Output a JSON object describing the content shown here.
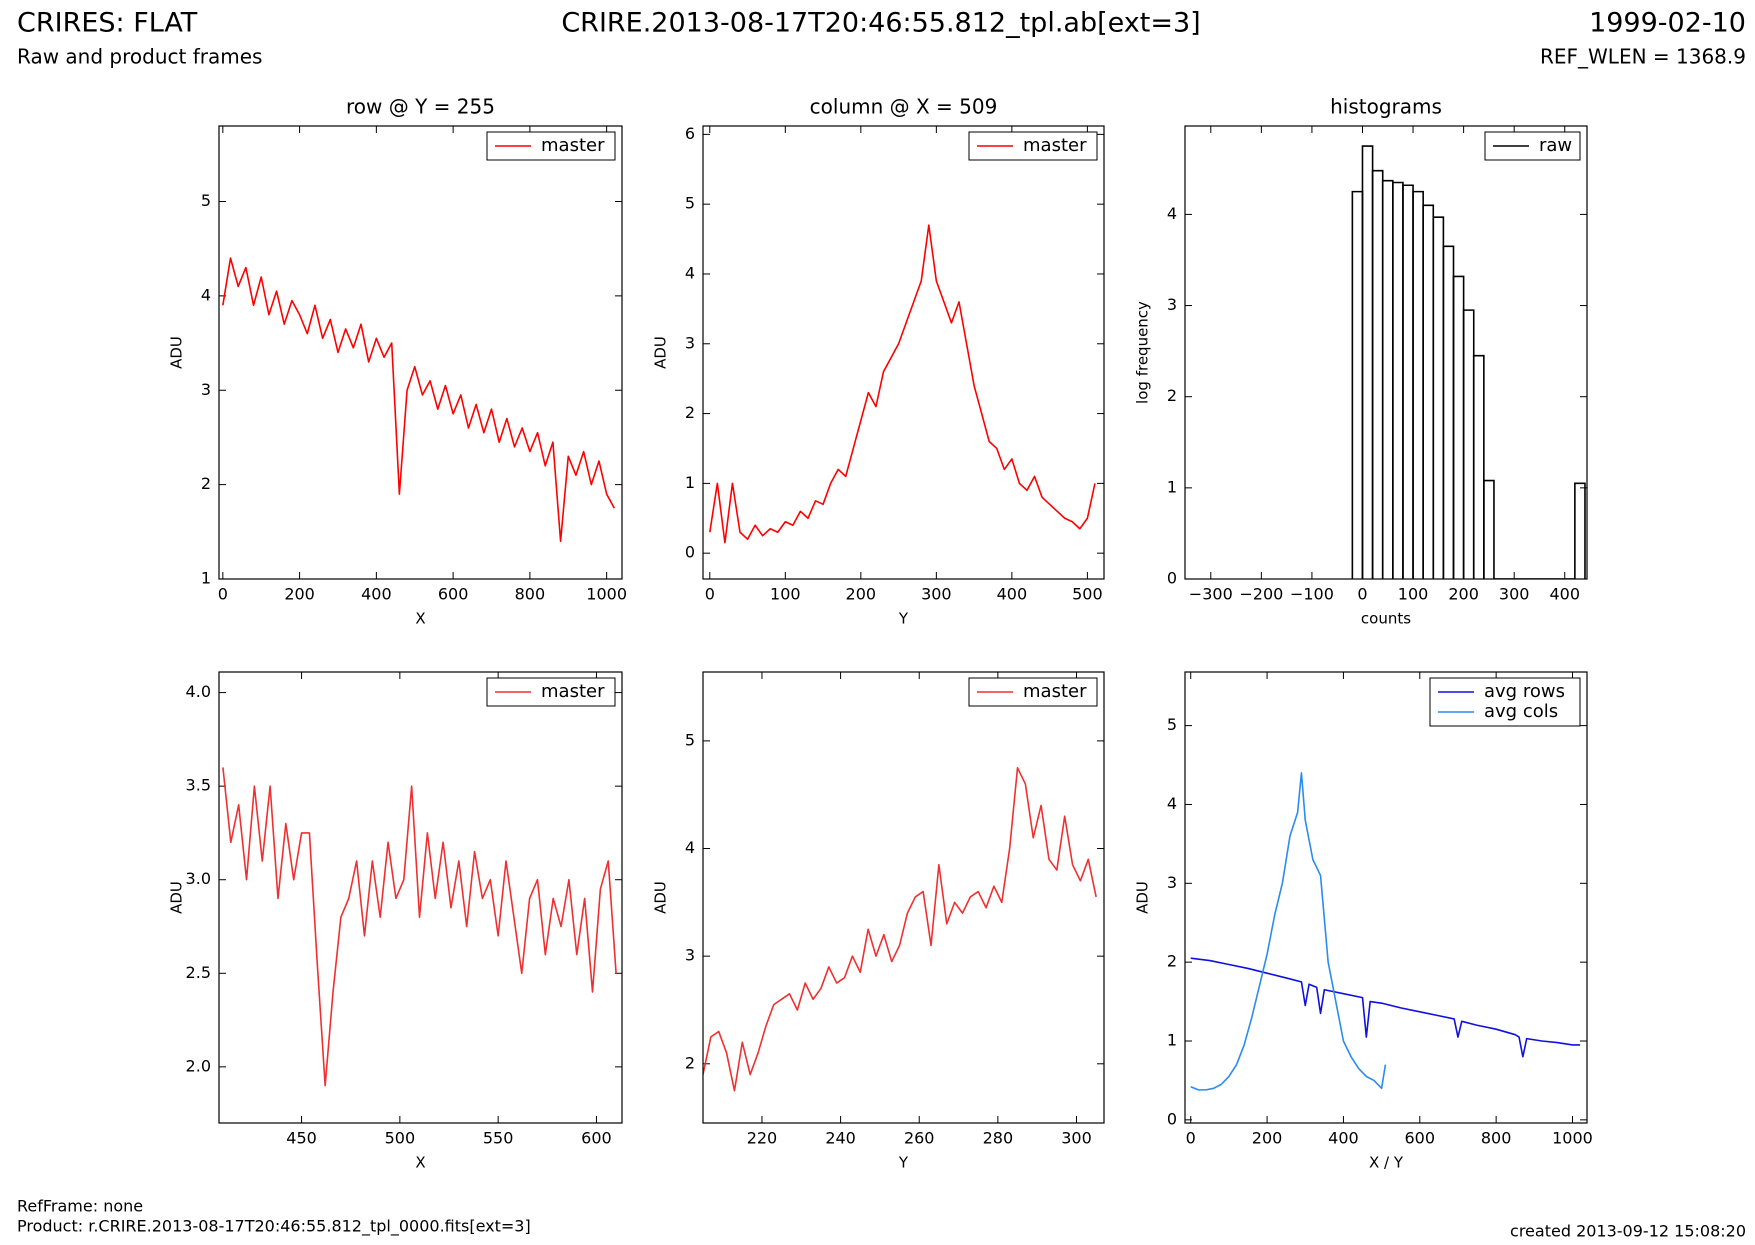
{
  "header": {
    "title": "CRIRES: FLAT",
    "subtitle": "Raw and product frames",
    "file": "CRIRE.2013-08-17T20:46:55.812_tpl.ab[ext=3]",
    "date": "1999-02-10",
    "ref_wlen": "REF_WLEN = 1368.9"
  },
  "footer": {
    "ref_frame": "RefFrame: none",
    "product": "Product: r.CRIRE.2013-08-17T20:46:55.812_tpl_0000.fits[ext=3]",
    "created": "created 2013-09-12 15:08:20"
  },
  "chart_data": [
    {
      "type": "line",
      "title": "row @ Y = 255",
      "x_label": "X",
      "y_label": "ADU",
      "legend": "upper right",
      "xlim": [
        -10,
        1040
      ],
      "ylim": [
        1,
        5.8
      ],
      "xticks": [
        0,
        200,
        400,
        600,
        800,
        1000
      ],
      "yticks": [
        1,
        2,
        3,
        4,
        5
      ],
      "series": [
        {
          "name": "master",
          "color": "#ff0000",
          "x": [
            0,
            20,
            40,
            60,
            80,
            100,
            120,
            140,
            160,
            180,
            200,
            220,
            240,
            260,
            280,
            300,
            320,
            340,
            360,
            380,
            400,
            420,
            440,
            460,
            480,
            500,
            520,
            540,
            560,
            580,
            600,
            620,
            640,
            660,
            680,
            700,
            720,
            740,
            760,
            780,
            800,
            820,
            840,
            860,
            880,
            900,
            920,
            940,
            960,
            980,
            1000,
            1020
          ],
          "values": [
            3.9,
            4.4,
            4.1,
            4.3,
            3.9,
            4.2,
            3.8,
            4.05,
            3.7,
            3.95,
            3.8,
            3.6,
            3.9,
            3.55,
            3.75,
            3.4,
            3.65,
            3.45,
            3.7,
            3.3,
            3.55,
            3.35,
            3.5,
            1.9,
            3.0,
            3.25,
            2.95,
            3.1,
            2.8,
            3.05,
            2.75,
            2.95,
            2.6,
            2.85,
            2.55,
            2.8,
            2.45,
            2.7,
            2.4,
            2.6,
            2.35,
            2.55,
            2.2,
            2.45,
            1.4,
            2.3,
            2.1,
            2.35,
            2.0,
            2.25,
            1.9,
            1.75
          ]
        }
      ]
    },
    {
      "type": "line",
      "title": "column @ X = 509",
      "x_label": "Y",
      "y_label": "ADU",
      "legend": "upper right",
      "xlim": [
        -9,
        522
      ],
      "ylim": [
        -0.37,
        6.12
      ],
      "xticks": [
        0,
        100,
        200,
        300,
        400,
        500
      ],
      "yticks": [
        0,
        1,
        2,
        3,
        4,
        5,
        6
      ],
      "series": [
        {
          "name": "master",
          "color": "#ff0000",
          "x": [
            0,
            10,
            20,
            30,
            40,
            50,
            60,
            70,
            80,
            90,
            100,
            110,
            120,
            130,
            140,
            150,
            160,
            170,
            180,
            190,
            200,
            210,
            220,
            230,
            240,
            250,
            260,
            270,
            280,
            290,
            300,
            310,
            320,
            330,
            340,
            350,
            360,
            370,
            380,
            390,
            400,
            410,
            420,
            430,
            440,
            450,
            460,
            470,
            480,
            490,
            500,
            510
          ],
          "values": [
            0.3,
            1.0,
            0.15,
            1.0,
            0.3,
            0.2,
            0.4,
            0.25,
            0.35,
            0.3,
            0.45,
            0.4,
            0.6,
            0.5,
            0.75,
            0.7,
            1.0,
            1.2,
            1.1,
            1.5,
            1.9,
            2.3,
            2.1,
            2.6,
            2.8,
            3.0,
            3.3,
            3.6,
            3.9,
            4.7,
            3.9,
            3.6,
            3.3,
            3.6,
            3.0,
            2.4,
            2.0,
            1.6,
            1.5,
            1.2,
            1.35,
            1.0,
            0.9,
            1.1,
            0.8,
            0.7,
            0.6,
            0.5,
            0.45,
            0.35,
            0.5,
            1.0
          ]
        }
      ]
    },
    {
      "type": "histogram",
      "title": "histograms",
      "x_label": "counts",
      "y_label": "log frequency",
      "legend": "upper right",
      "xlim": [
        -351,
        444
      ],
      "ylim": [
        0,
        4.97
      ],
      "xticks": [
        {
          "value": -300,
          "label": "−300"
        },
        {
          "value": -200,
          "label": "−200"
        },
        {
          "value": -100,
          "label": "−100"
        },
        0,
        100,
        200,
        300,
        400
      ],
      "yticks": [
        0,
        1,
        2,
        3,
        4
      ],
      "bins": [
        -20,
        0,
        20,
        40,
        60,
        80,
        100,
        120,
        140,
        160,
        180,
        200,
        220,
        240,
        260,
        280,
        300,
        320,
        340,
        360,
        380,
        400,
        420,
        440
      ],
      "series": [
        {
          "name": "raw",
          "color": "#000000",
          "values": [
            4.25,
            4.75,
            4.48,
            4.37,
            4.35,
            4.32,
            4.25,
            4.1,
            3.97,
            3.65,
            3.32,
            2.95,
            2.45,
            1.08,
            0,
            0,
            0,
            0,
            0,
            0,
            0,
            0,
            1.05
          ]
        }
      ]
    },
    {
      "type": "line",
      "x_label": "X",
      "y_label": "ADU",
      "legend": "upper right",
      "xlim": [
        408,
        613
      ],
      "ylim": [
        1.7,
        4.11
      ],
      "xticks": [
        450,
        500,
        550,
        600
      ],
      "yticks": [
        {
          "value": 2,
          "label": "2.0"
        },
        {
          "value": 2.5,
          "label": "2.5"
        },
        {
          "value": 3,
          "label": "3.0"
        },
        {
          "value": 3.5,
          "label": "3.5"
        },
        {
          "value": 4,
          "label": "4.0"
        }
      ],
      "series": [
        {
          "name": "master",
          "color": "#f03030",
          "x": [
            410,
            414,
            418,
            422,
            426,
            430,
            434,
            438,
            442,
            446,
            450,
            454,
            458,
            462,
            466,
            470,
            474,
            478,
            482,
            486,
            490,
            494,
            498,
            502,
            506,
            510,
            514,
            518,
            522,
            526,
            530,
            534,
            538,
            542,
            546,
            550,
            554,
            558,
            562,
            566,
            570,
            574,
            578,
            582,
            586,
            590,
            594,
            598,
            602,
            606,
            610
          ],
          "values": [
            3.6,
            3.2,
            3.4,
            3.0,
            3.5,
            3.1,
            3.5,
            2.9,
            3.3,
            3.0,
            3.25,
            3.25,
            2.55,
            1.9,
            2.4,
            2.8,
            2.9,
            3.1,
            2.7,
            3.1,
            2.8,
            3.2,
            2.9,
            3.0,
            3.5,
            2.8,
            3.25,
            2.9,
            3.2,
            2.85,
            3.1,
            2.75,
            3.15,
            2.9,
            3.0,
            2.7,
            3.1,
            2.8,
            2.5,
            2.9,
            3.0,
            2.6,
            2.9,
            2.75,
            3.0,
            2.6,
            2.9,
            2.4,
            2.95,
            3.1,
            2.5
          ]
        }
      ]
    },
    {
      "type": "line",
      "x_label": "Y",
      "y_label": "ADU",
      "legend": "upper right",
      "xlim": [
        205,
        307
      ],
      "ylim": [
        1.45,
        5.64
      ],
      "xticks": [
        220,
        240,
        260,
        280,
        300
      ],
      "yticks": [
        2,
        3,
        4,
        5
      ],
      "series": [
        {
          "name": "master",
          "color": "#f03030",
          "x": [
            205,
            207,
            209,
            211,
            213,
            215,
            217,
            219,
            221,
            223,
            225,
            227,
            229,
            231,
            233,
            235,
            237,
            239,
            241,
            243,
            245,
            247,
            249,
            251,
            253,
            255,
            257,
            259,
            261,
            263,
            265,
            267,
            269,
            271,
            273,
            275,
            277,
            279,
            281,
            283,
            285,
            287,
            289,
            291,
            293,
            295,
            297,
            299,
            301,
            303,
            305
          ],
          "values": [
            1.9,
            2.25,
            2.3,
            2.1,
            1.75,
            2.2,
            1.9,
            2.1,
            2.35,
            2.55,
            2.6,
            2.65,
            2.5,
            2.75,
            2.6,
            2.7,
            2.9,
            2.75,
            2.8,
            3.0,
            2.85,
            3.25,
            3.0,
            3.2,
            2.95,
            3.1,
            3.4,
            3.55,
            3.6,
            3.1,
            3.85,
            3.3,
            3.5,
            3.4,
            3.55,
            3.6,
            3.45,
            3.65,
            3.5,
            4.0,
            4.75,
            4.6,
            4.1,
            4.4,
            3.9,
            3.8,
            4.3,
            3.85,
            3.7,
            3.9,
            3.55
          ]
        }
      ]
    },
    {
      "type": "line",
      "x_label": "X / Y",
      "y_label": "ADU",
      "legend": "upper right",
      "xlim": [
        -15,
        1038
      ],
      "ylim": [
        -0.04,
        5.68
      ],
      "xticks": [
        0,
        200,
        400,
        600,
        800,
        1000
      ],
      "yticks": [
        0,
        1,
        2,
        3,
        4,
        5
      ],
      "series": [
        {
          "name": "avg rows",
          "color": "#1010e0",
          "x": [
            0,
            50,
            100,
            150,
            200,
            250,
            290,
            300,
            310,
            330,
            340,
            350,
            400,
            450,
            460,
            470,
            500,
            550,
            600,
            650,
            690,
            700,
            710,
            750,
            800,
            850,
            860,
            870,
            880,
            920,
            960,
            1000,
            1020
          ],
          "values": [
            2.05,
            2.02,
            1.97,
            1.92,
            1.86,
            1.8,
            1.75,
            1.45,
            1.72,
            1.68,
            1.35,
            1.65,
            1.6,
            1.55,
            1.05,
            1.5,
            1.48,
            1.42,
            1.37,
            1.32,
            1.28,
            1.05,
            1.25,
            1.2,
            1.15,
            1.08,
            1.05,
            0.8,
            1.03,
            1.0,
            0.98,
            0.95,
            0.95
          ]
        },
        {
          "name": "avg cols",
          "color": "#2a8cf0",
          "x": [
            0,
            20,
            40,
            60,
            80,
            100,
            120,
            140,
            160,
            180,
            200,
            220,
            240,
            260,
            280,
            290,
            300,
            320,
            340,
            360,
            380,
            400,
            420,
            440,
            460,
            480,
            500,
            510
          ],
          "values": [
            0.42,
            0.38,
            0.38,
            0.4,
            0.45,
            0.55,
            0.7,
            0.95,
            1.3,
            1.7,
            2.1,
            2.6,
            3.0,
            3.6,
            3.9,
            4.4,
            3.8,
            3.3,
            3.1,
            2.0,
            1.5,
            1.0,
            0.8,
            0.65,
            0.55,
            0.5,
            0.4,
            0.7
          ]
        }
      ]
    }
  ]
}
